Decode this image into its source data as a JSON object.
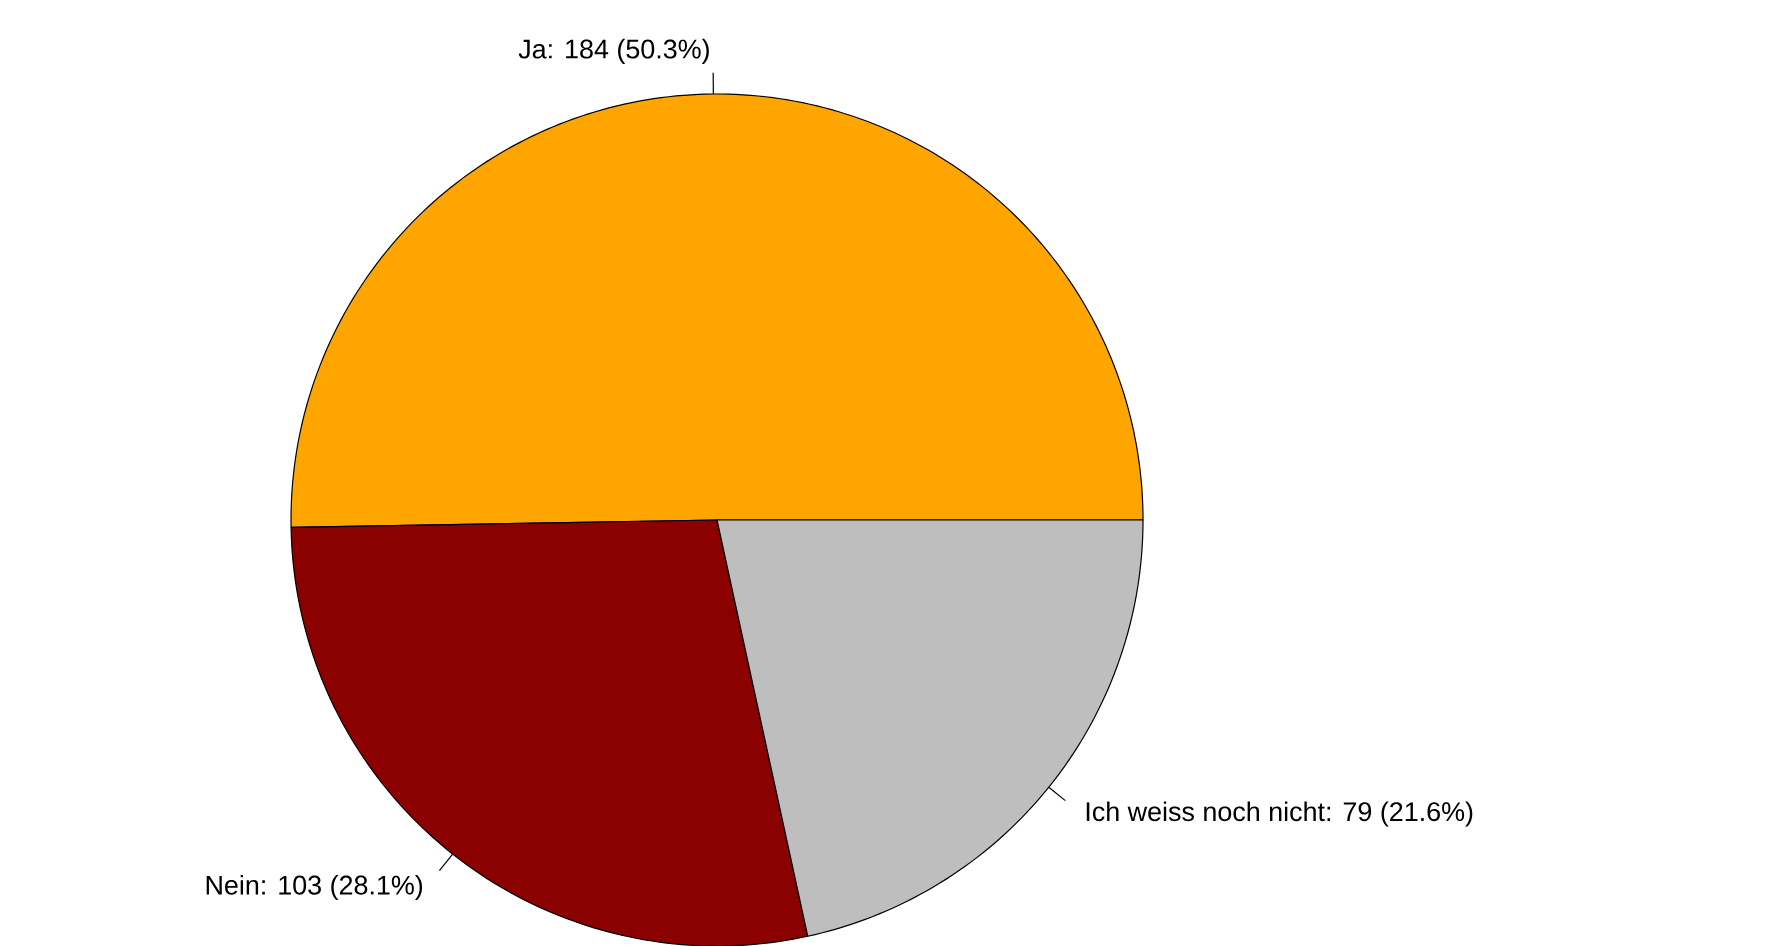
{
  "chart_data": {
    "type": "pie",
    "categories": [
      "Ja: 184 (50.3%)",
      "Nein: 103 (28.1%)",
      "Ich weiss noch nicht: 79 (21.6%)"
    ],
    "values": [
      184,
      103,
      79
    ],
    "colors": [
      "#ffa500",
      "#8b0000",
      "#bebebe"
    ]
  }
}
